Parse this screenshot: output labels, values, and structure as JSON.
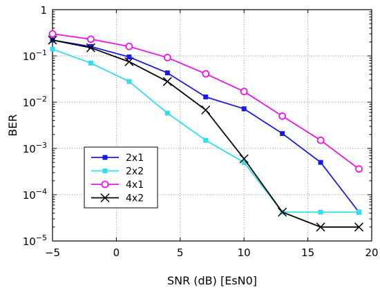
{
  "chart_data": {
    "type": "line",
    "title": "",
    "xlabel": "SNR (dB) [EsN0]",
    "ylabel": "BER",
    "xlim": [
      -5,
      20
    ],
    "ylim": [
      1e-05,
      1
    ],
    "y_scale": "log",
    "grid": true,
    "legend_position": "lower-left",
    "x_ticks": [
      -5,
      0,
      5,
      10,
      15,
      20
    ],
    "x_tick_labels": [
      "−5",
      "0",
      "5",
      "10",
      "15",
      "20"
    ],
    "y_ticks": [
      {
        "value": 1,
        "base": "1",
        "exp": ""
      },
      {
        "value": 0.1,
        "base": "10",
        "exp": "−1"
      },
      {
        "value": 0.01,
        "base": "10",
        "exp": "−2"
      },
      {
        "value": 0.001,
        "base": "10",
        "exp": "−3"
      },
      {
        "value": 0.0001,
        "base": "10",
        "exp": "−4"
      },
      {
        "value": 1e-05,
        "base": "10",
        "exp": "−5"
      }
    ],
    "series": [
      {
        "name": "2x1",
        "color": "#1a1ae6",
        "marker": "filled-square",
        "x": [
          -5,
          -2,
          1,
          4,
          7,
          10,
          13,
          16,
          19
        ],
        "y": [
          0.22,
          0.16,
          0.095,
          0.043,
          0.013,
          0.0072,
          0.0021,
          0.0005,
          4.2e-05
        ]
      },
      {
        "name": "2x2",
        "color": "#33ddee",
        "marker": "filled-square",
        "x": [
          -5,
          -2,
          1,
          4,
          7,
          10,
          13,
          16,
          19
        ],
        "y": [
          0.14,
          0.07,
          0.028,
          0.0058,
          0.0015,
          0.0005,
          4.2e-05,
          4.2e-05,
          4.2e-05
        ]
      },
      {
        "name": "4x1",
        "color": "#ee11ee",
        "marker": "open-circle",
        "x": [
          -5,
          -2,
          1,
          4,
          7,
          10,
          13,
          16,
          19
        ],
        "y": [
          0.3,
          0.23,
          0.16,
          0.092,
          0.041,
          0.017,
          0.005,
          0.0015,
          0.00036
        ]
      },
      {
        "name": "4x2",
        "color": "#000000",
        "marker": "x",
        "x": [
          -5,
          -2,
          1,
          4,
          7,
          10,
          13,
          16,
          19
        ],
        "y": [
          0.22,
          0.15,
          0.075,
          0.028,
          0.0068,
          0.0006,
          4.2e-05,
          2e-05,
          2e-05
        ]
      }
    ]
  }
}
